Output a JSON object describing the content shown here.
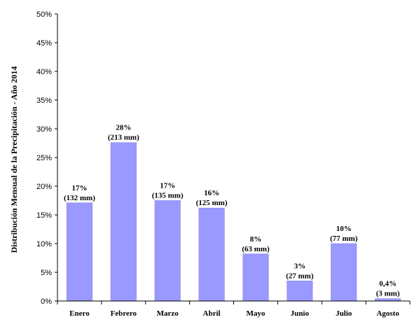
{
  "chart_data": {
    "type": "bar",
    "categories": [
      "Enero",
      "Febrero",
      "Marzo",
      "Abril",
      "Mayo",
      "Junio",
      "Julio",
      "Agosto"
    ],
    "values": [
      17.1,
      27.6,
      17.5,
      16.2,
      8.2,
      3.5,
      10.0,
      0.4
    ],
    "data_labels": [
      [
        "17%",
        "(132 mm)"
      ],
      [
        "28%",
        "(213  mm)"
      ],
      [
        "17%",
        "(135 mm)"
      ],
      [
        "16%",
        "(125 mm)"
      ],
      [
        "8%",
        "(63 mm)"
      ],
      [
        "3%",
        "(27 mm)"
      ],
      [
        "10%",
        "(77 mm)"
      ],
      [
        "0,4%",
        "(3 mm)"
      ]
    ],
    "ylabel": "Distribución Mensual de la Precipitación - Año 2014",
    "ylim": [
      0,
      50
    ],
    "yticks": [
      "0%",
      "5%",
      "10%",
      "15%",
      "20%",
      "25%",
      "30%",
      "35%",
      "40%",
      "45%",
      "50%"
    ],
    "grid": false,
    "bar_color": "#9999ff",
    "bar_edge_color": "#7777dd"
  }
}
